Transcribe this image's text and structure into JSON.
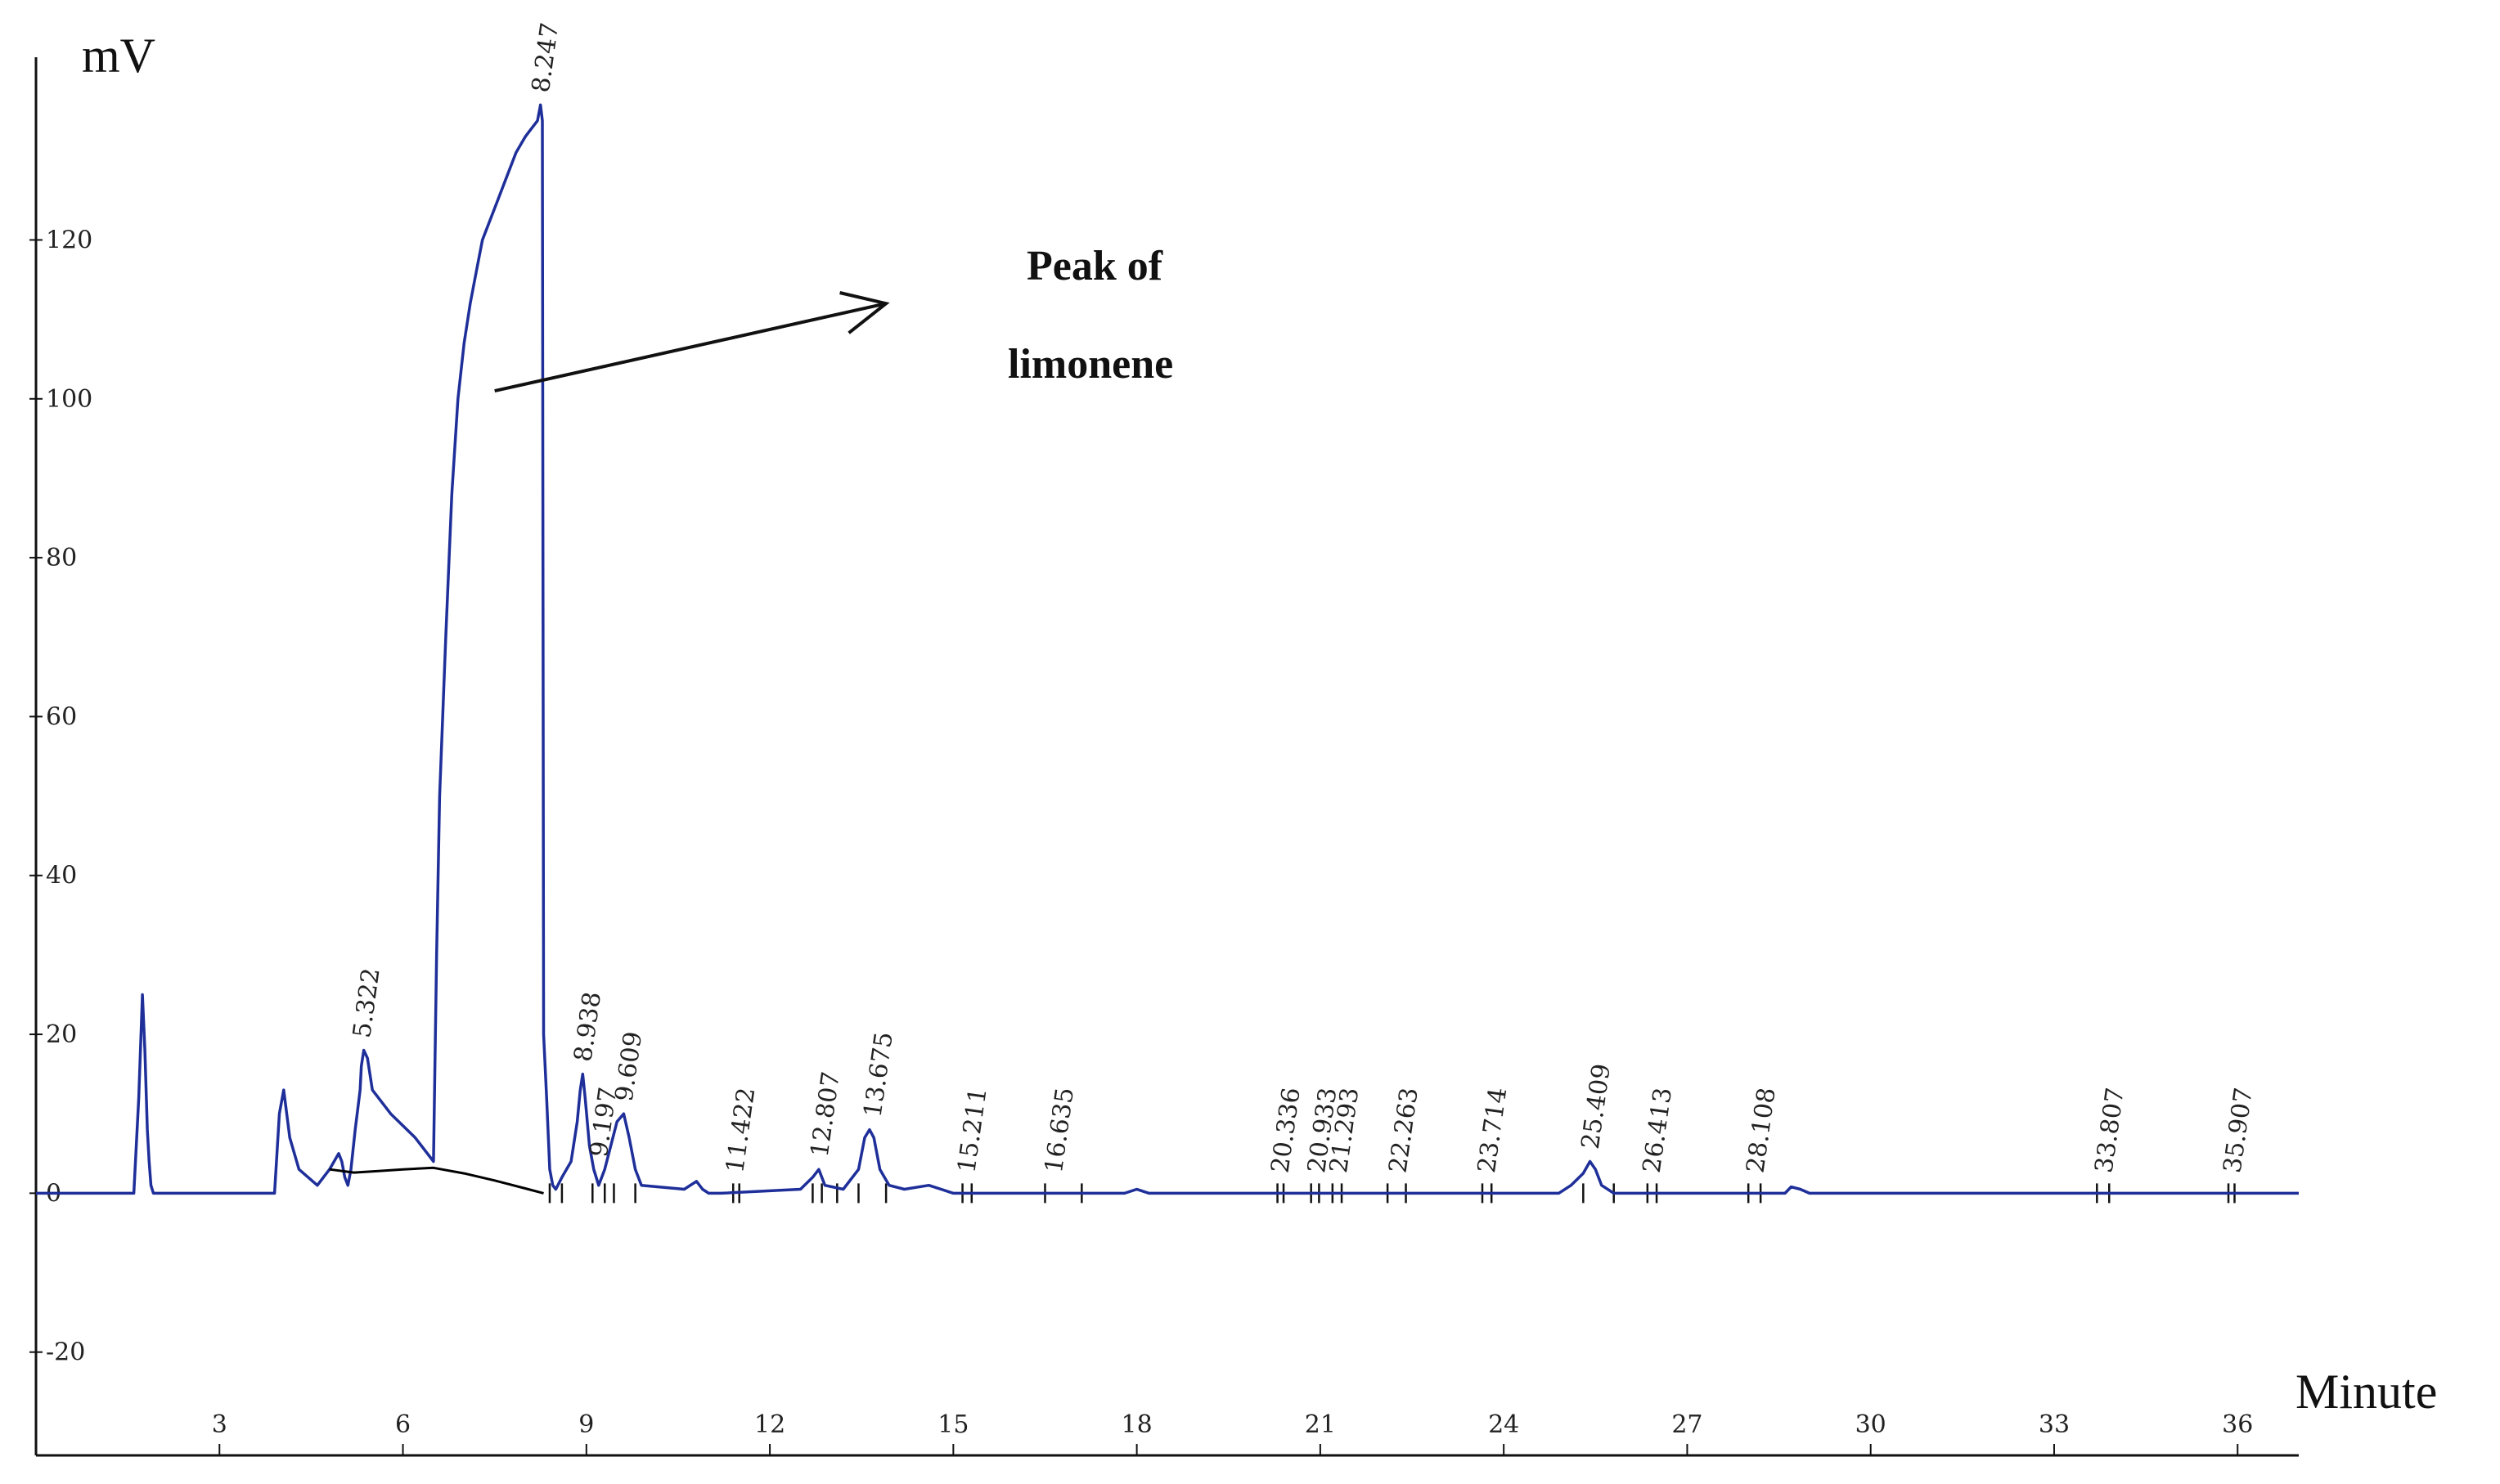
{
  "chart_data": {
    "type": "line",
    "title": "",
    "xlabel": "Minute",
    "ylabel": "mV",
    "xlim": [
      0,
      37
    ],
    "ylim": [
      -33,
      143
    ],
    "x_ticks": [
      3,
      6,
      9,
      12,
      15,
      18,
      21,
      24,
      27,
      30,
      33,
      36
    ],
    "y_ticks": [
      {
        "value": -20,
        "label": "-20"
      },
      {
        "value": 0,
        "label": "0"
      },
      {
        "value": 20,
        "label": "20"
      },
      {
        "value": 40,
        "label": "40"
      },
      {
        "value": 60,
        "label": "60"
      },
      {
        "value": 80,
        "label": "80"
      },
      {
        "value": 100,
        "label": "100"
      },
      {
        "value": 120,
        "label": "120"
      }
    ],
    "series": [
      {
        "color": "#1f2f9a",
        "x": [
          0,
          1.6,
          1.68,
          1.74,
          1.78,
          1.82,
          1.85,
          1.88,
          1.92,
          2.0,
          3.9,
          3.98,
          4.05,
          4.15,
          4.3,
          4.6,
          4.8,
          4.95,
          5.0,
          5.05,
          5.1,
          5.15,
          5.22,
          5.3,
          5.32,
          5.36,
          5.42,
          5.5,
          5.8,
          6.2,
          6.5,
          6.55,
          6.6,
          6.7,
          6.8,
          6.9,
          7.0,
          7.1,
          7.2,
          7.3,
          7.5,
          7.7,
          7.85,
          8.0,
          8.1,
          8.2,
          8.25,
          8.28,
          8.3,
          8.35,
          8.4,
          8.45,
          8.5,
          8.6,
          8.75,
          8.85,
          8.9,
          8.94,
          8.98,
          9.05,
          9.12,
          9.2,
          9.3,
          9.4,
          9.5,
          9.61,
          9.7,
          9.8,
          9.9,
          10.6,
          10.8,
          10.9,
          11.0,
          11.2,
          12.5,
          12.7,
          12.8,
          12.9,
          13.2,
          13.45,
          13.55,
          13.63,
          13.7,
          13.8,
          13.95,
          14.2,
          14.6,
          14.8,
          15.0,
          15.2,
          17.8,
          18.0,
          18.2,
          24.9,
          25.1,
          25.3,
          25.41,
          25.5,
          25.6,
          25.8,
          28.6,
          28.7,
          28.85,
          29.0,
          37.0
        ],
        "y": [
          0,
          0,
          12,
          25,
          18,
          8,
          4,
          1,
          0,
          0,
          0,
          10,
          13,
          7,
          3,
          1,
          3,
          5,
          4,
          2,
          1,
          3,
          8,
          13,
          16,
          18,
          17,
          13,
          10,
          7,
          4,
          30,
          50,
          70,
          88,
          100,
          107,
          112,
          116,
          120,
          124,
          128,
          131,
          133,
          134,
          135,
          137,
          135,
          20,
          12,
          3,
          1,
          0.5,
          2,
          4,
          9,
          13,
          15,
          12,
          6,
          3,
          1,
          3,
          6,
          9,
          10,
          7,
          3,
          1,
          0.5,
          1.5,
          0.5,
          0,
          0,
          0.5,
          2,
          3,
          1,
          0.5,
          3,
          7,
          8,
          7,
          3,
          1,
          0.5,
          1,
          0.5,
          0,
          0,
          0,
          0.5,
          0,
          0,
          1,
          2.5,
          4,
          3,
          1,
          0,
          0,
          0.8,
          0.5,
          0,
          0
        ]
      },
      {
        "color": "#000000",
        "x": [
          4.8,
          5.2,
          5.6,
          6.0,
          6.5,
          7.0,
          7.5,
          8.0,
          8.3
        ],
        "y": [
          3,
          2.6,
          2.8,
          3.0,
          3.2,
          2.5,
          1.6,
          0.6,
          0
        ]
      }
    ],
    "peak_labels": [
      {
        "x": 5.322,
        "y": 18,
        "label": "5.322"
      },
      {
        "x": 8.247,
        "y": 137,
        "label": "8.247"
      },
      {
        "x": 8.938,
        "y": 15,
        "label": "8.938"
      },
      {
        "x": 9.197,
        "y": 3,
        "label": "9.197"
      },
      {
        "x": 9.609,
        "y": 10,
        "label": "9.609"
      },
      {
        "x": 11.422,
        "y": 1,
        "label": "11.422"
      },
      {
        "x": 12.807,
        "y": 3,
        "label": "12.807"
      },
      {
        "x": 13.675,
        "y": 8,
        "label": "13.675"
      },
      {
        "x": 15.211,
        "y": 1,
        "label": "15.211"
      },
      {
        "x": 16.635,
        "y": 1,
        "label": "16.635"
      },
      {
        "x": 20.336,
        "y": 1,
        "label": "20.336"
      },
      {
        "x": 20.933,
        "y": 1,
        "label": "20.933"
      },
      {
        "x": 21.293,
        "y": 1,
        "label": "21.293"
      },
      {
        "x": 22.263,
        "y": 1,
        "label": "22.263"
      },
      {
        "x": 23.714,
        "y": 1,
        "label": "23.714"
      },
      {
        "x": 25.409,
        "y": 4,
        "label": "25.409"
      },
      {
        "x": 26.413,
        "y": 1,
        "label": "26.413"
      },
      {
        "x": 28.108,
        "y": 1,
        "label": "28.108"
      },
      {
        "x": 33.807,
        "y": 1,
        "label": "33.807"
      },
      {
        "x": 35.907,
        "y": 1,
        "label": "35.907"
      }
    ],
    "baseline_markers": [
      8.4,
      8.6,
      9.1,
      9.3,
      9.45,
      9.8,
      11.4,
      11.5,
      12.7,
      12.85,
      13.1,
      13.45,
      13.9,
      15.15,
      15.3,
      16.5,
      17.1,
      20.3,
      20.4,
      20.85,
      20.98,
      21.2,
      21.35,
      22.1,
      22.4,
      23.65,
      23.8,
      25.3,
      25.8,
      26.35,
      26.5,
      28.0,
      28.2,
      33.7,
      33.9,
      35.85,
      35.95
    ],
    "annotation": {
      "lines": [
        "Peak of",
        "limonene"
      ],
      "arrow_from": {
        "x": 7.5,
        "y": 101
      },
      "arrow_to": {
        "x": 13.9,
        "y": 112
      }
    },
    "grid": false,
    "legend": "none"
  }
}
